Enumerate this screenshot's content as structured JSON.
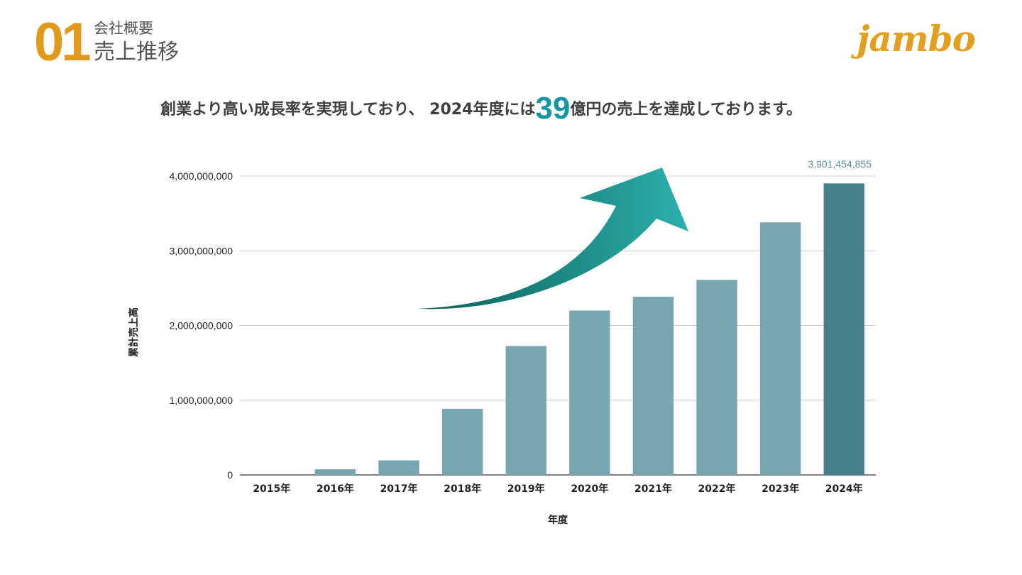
{
  "header": {
    "section_number": "01",
    "section_sub": "会社概要",
    "section_title": "売上推移"
  },
  "brand": {
    "logo_text": "jambo",
    "color": "#e3a01f"
  },
  "headline": {
    "before": "創業より高い成長率を実現しており、 2024年度には",
    "highlight": "39",
    "after": "億円の売上を達成しております。",
    "highlight_color": "#1797a3"
  },
  "chart_data": {
    "type": "bar",
    "categories": [
      "2015年",
      "2016年",
      "2017年",
      "2018年",
      "2019年",
      "2020年",
      "2021年",
      "2022年",
      "2023年",
      "2024年"
    ],
    "values": [
      0,
      75000000,
      195000000,
      885000000,
      1725000000,
      2200000000,
      2385000000,
      2610000000,
      3380000000,
      3901454855
    ],
    "xlabel": "年度",
    "ylabel": "累計売上高",
    "ylim": [
      0,
      4000000000
    ],
    "yticks": [
      0,
      1000000000,
      2000000000,
      3000000000,
      4000000000
    ],
    "ytick_labels": [
      "0",
      "1,000,000,000",
      "2,000,000,000",
      "3,000,000,000",
      "4,000,000,000"
    ],
    "grid": true,
    "bar_color": "#78a6b0",
    "highlight_bar_color": "#477f8b",
    "highlight_index": 9,
    "annotation": "3,901,454,855",
    "annotation_color": "#5b8f9a",
    "trend_arrow": true,
    "arrow_colors": [
      "#0b5c55",
      "#2cb0ad"
    ]
  }
}
